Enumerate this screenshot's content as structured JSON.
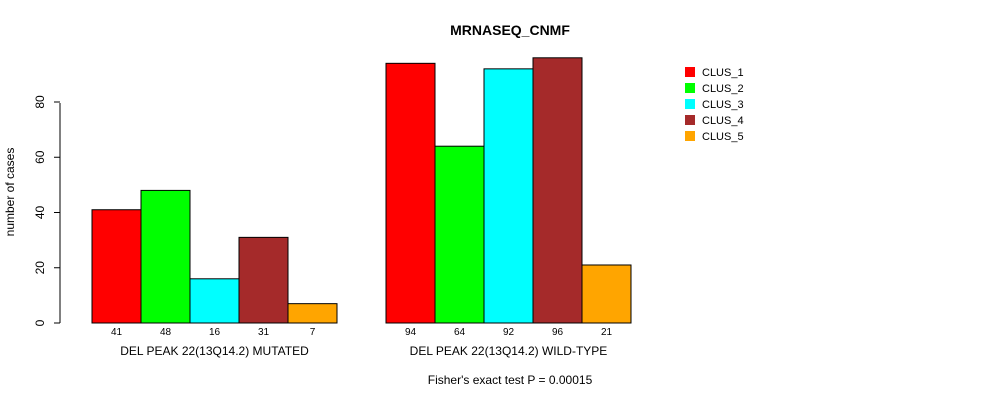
{
  "chart_data": {
    "type": "bar",
    "title": "MRNASEQ_CNMF",
    "xlabel": "",
    "ylabel": "number of cases",
    "ylim": [
      0,
      100
    ],
    "yticks": [
      0,
      20,
      40,
      60,
      80
    ],
    "grid": false,
    "legend_position": "top-right",
    "categories": [
      "DEL PEAK 22(13Q14.2) MUTATED",
      "DEL PEAK 22(13Q14.2) WILD-TYPE"
    ],
    "series": [
      {
        "name": "CLUS_1",
        "color": "#ff0000",
        "values": [
          41,
          94
        ]
      },
      {
        "name": "CLUS_2",
        "color": "#00ff00",
        "values": [
          48,
          64
        ]
      },
      {
        "name": "CLUS_3",
        "color": "#00ffff",
        "values": [
          16,
          92
        ]
      },
      {
        "name": "CLUS_4",
        "color": "#a52a2a",
        "values": [
          31,
          96
        ]
      },
      {
        "name": "CLUS_5",
        "color": "#ffa500",
        "values": [
          7,
          21
        ]
      }
    ],
    "annotation": "Fisher's exact test P = 0.00015"
  }
}
